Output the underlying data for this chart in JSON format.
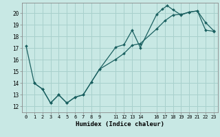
{
  "xlabel": "Humidex (Indice chaleur)",
  "bg_color": "#c8e8e4",
  "grid_color": "#a8d0cc",
  "line_color": "#1a6060",
  "xlim": [
    -0.5,
    23.5
  ],
  "ylim": [
    11.5,
    20.9
  ],
  "xticks": [
    0,
    1,
    2,
    3,
    4,
    5,
    6,
    7,
    8,
    9,
    11,
    12,
    13,
    14,
    16,
    17,
    18,
    19,
    20,
    21,
    22,
    23
  ],
  "yticks": [
    12,
    13,
    14,
    15,
    16,
    17,
    18,
    19,
    20
  ],
  "line1_x": [
    0,
    1,
    2,
    3,
    4,
    5,
    6,
    7,
    8,
    9,
    11,
    12,
    13,
    14,
    16,
    16.7,
    17.3,
    18,
    19,
    20,
    21,
    22,
    23
  ],
  "line1_y": [
    17.2,
    14.0,
    13.5,
    12.3,
    13.0,
    12.3,
    12.8,
    13.0,
    14.1,
    15.2,
    17.1,
    17.3,
    18.55,
    17.05,
    19.9,
    20.35,
    20.65,
    20.3,
    19.85,
    20.1,
    20.2,
    19.2,
    18.5
  ],
  "line2_x": [
    1,
    2,
    3,
    4,
    5,
    6,
    7,
    8,
    9,
    11,
    12,
    13,
    14,
    16,
    17,
    18,
    19,
    20,
    21,
    22,
    23
  ],
  "line2_y": [
    14.0,
    13.5,
    12.3,
    13.0,
    12.3,
    12.8,
    13.0,
    14.1,
    15.2,
    16.05,
    16.55,
    17.25,
    17.4,
    18.65,
    19.35,
    19.85,
    19.9,
    20.1,
    20.2,
    18.55,
    18.45
  ]
}
